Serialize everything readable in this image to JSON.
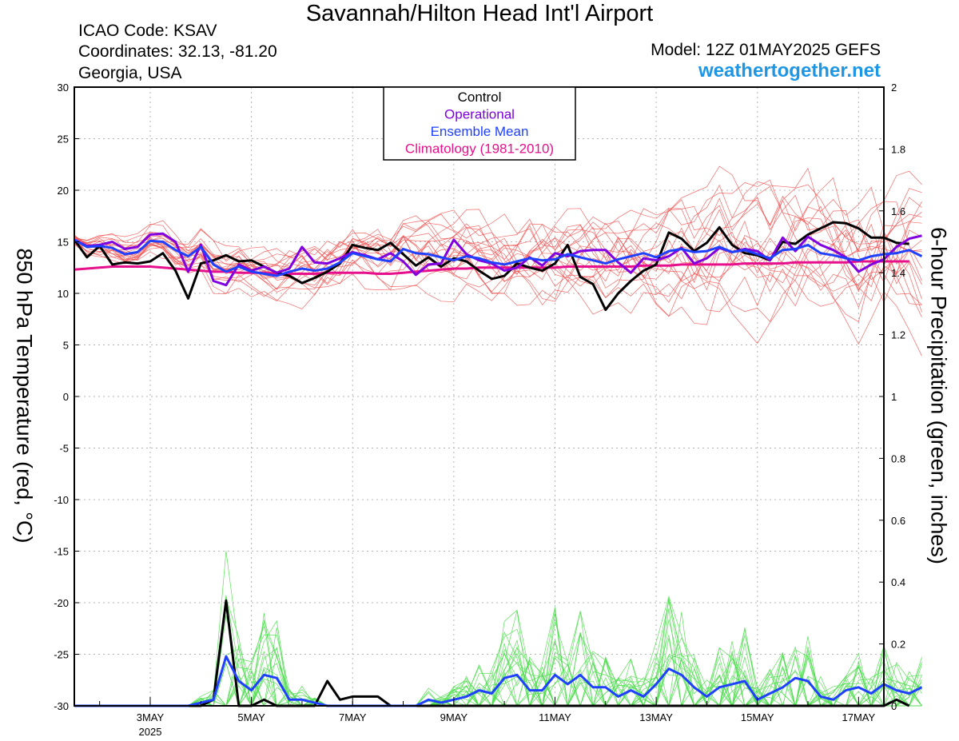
{
  "header": {
    "title": "Savannah/Hilton Head Int'l Airport",
    "icao": "ICAO Code: KSAV",
    "coordinates": "Coordinates: 32.13, -81.20",
    "region": "Georgia, USA",
    "model": "Model: 12Z 01MAY2025 GEFS",
    "site": "weathertogether.net"
  },
  "colors": {
    "members_temp": "#f05050",
    "members_precip": "#4ddd4d",
    "control": "#000000",
    "operational": "#8000e0",
    "ensemble_mean": "#2040ff",
    "climatology": "#e6108c",
    "site_link": "#1e96e6"
  },
  "chart_data": {
    "type": "line",
    "ylabel": "850 hPa Temperature (red, °C)",
    "y2label": "6-hour Precipitation (green, inches)",
    "ylim": [
      -30,
      30
    ],
    "y2lim": [
      0,
      2
    ],
    "yticks": [
      "-30",
      "-25",
      "-20",
      "-15",
      "-10",
      "-5",
      "0",
      "5",
      "10",
      "15",
      "20",
      "25",
      "30"
    ],
    "y2ticks": [
      "0",
      "0.2",
      "0.4",
      "0.6",
      "0.8",
      "1",
      "1.2",
      "1.4",
      "1.6",
      "1.8",
      "2"
    ],
    "xlim": [
      "2025-05-01T12:00Z",
      "2025-05-17T12:00Z"
    ],
    "xtick_labels": [
      "3MAY",
      "5MAY",
      "7MAY",
      "9MAY",
      "11MAY",
      "13MAY",
      "15MAY",
      "17MAY"
    ],
    "x_year_label": "2025",
    "grid": true,
    "legend": {
      "placement": "top-center",
      "entries": [
        "Control",
        "Operational",
        "Ensemble Mean",
        "Climatology (1981-2010)"
      ]
    },
    "time_step_hours": 6,
    "series": [
      {
        "name": "Control",
        "axis": "temperature",
        "values": [
          15.2,
          13.5,
          14.6,
          12.8,
          13.0,
          12.9,
          13.1,
          13.9,
          12.2,
          9.5,
          12.9,
          13.2,
          13.7,
          13.1,
          13.2,
          12.6,
          12.0,
          11.7,
          11.0,
          11.5,
          12.1,
          12.9,
          14.7,
          14.4,
          14.2,
          14.9,
          13.8,
          12.7,
          13.5,
          12.6,
          13.4,
          13.1,
          12.2,
          11.4,
          11.7,
          12.9,
          12.5,
          12.2,
          12.9,
          14.7,
          11.6,
          10.9,
          8.4,
          10.0,
          11.2,
          12.2,
          12.8,
          15.9,
          15.3,
          14.1,
          14.9,
          16.4,
          14.7,
          13.9,
          13.7,
          13.2,
          15.0,
          14.8,
          15.7,
          16.3,
          16.9,
          16.8,
          16.3,
          15.4,
          15.4,
          14.9,
          14.8
        ]
      },
      {
        "name": "Operational",
        "axis": "temperature",
        "values": [
          15.2,
          14.6,
          14.7,
          15.0,
          14.3,
          14.5,
          15.7,
          15.8,
          15.0,
          12.1,
          14.7,
          11.2,
          10.8,
          12.8,
          12.2,
          12.6,
          12.0,
          12.4,
          14.5,
          13.0,
          12.9,
          13.4,
          14.0,
          13.7,
          13.3,
          13.9,
          13.1,
          11.8,
          12.8,
          12.9,
          15.2,
          13.8,
          13.2,
          12.9,
          12.2,
          12.5,
          13.5,
          12.7,
          13.9,
          13.6,
          14.1,
          14.2,
          14.2,
          13.0,
          12.0,
          13.4,
          13.2,
          13.6,
          14.4,
          12.9,
          13.4,
          14.4,
          14.0,
          14.3,
          14.1,
          13.2,
          15.4,
          14.1,
          15.5,
          14.7,
          14.2,
          13.5,
          12.1,
          12.8,
          13.3,
          14.5,
          15.3,
          15.6
        ]
      },
      {
        "name": "Ensemble Mean",
        "axis": "temperature",
        "values": [
          15.2,
          14.5,
          14.6,
          14.4,
          13.8,
          14.0,
          15.1,
          15.0,
          14.2,
          13.6,
          14.5,
          12.8,
          12.1,
          12.6,
          12.1,
          11.9,
          11.7,
          12.1,
          12.4,
          12.2,
          12.4,
          13.0,
          13.9,
          13.6,
          13.3,
          13.1,
          14.3,
          13.9,
          13.8,
          13.5,
          13.2,
          13.6,
          13.4,
          13.0,
          12.8,
          13.1,
          13.4,
          13.2,
          13.3,
          13.8,
          13.5,
          13.2,
          12.9,
          13.3,
          13.6,
          13.9,
          13.5,
          14.1,
          14.3,
          14.0,
          14.1,
          14.5,
          14.0,
          14.2,
          13.8,
          13.4,
          14.2,
          14.3,
          14.7,
          13.9,
          13.7,
          13.4,
          13.2,
          13.6,
          13.8,
          13.9,
          14.2,
          13.6
        ]
      },
      {
        "name": "Climatology (1981-2010)",
        "axis": "temperature",
        "values": [
          12.3,
          12.4,
          12.5,
          12.6,
          12.6,
          12.6,
          12.6,
          12.5,
          12.4,
          12.3,
          12.2,
          12.1,
          12.1,
          12.0,
          12.0,
          12.0,
          11.9,
          11.9,
          11.9,
          11.9,
          12.0,
          12.0,
          12.0,
          12.0,
          11.9,
          11.9,
          12.0,
          12.1,
          12.2,
          12.3,
          12.4,
          12.4,
          12.5,
          12.5,
          12.5,
          12.5,
          12.5,
          12.5,
          12.5,
          12.6,
          12.6,
          12.6,
          12.6,
          12.6,
          12.6,
          12.7,
          12.7,
          12.7,
          12.8,
          12.8,
          12.8,
          12.8,
          12.8,
          12.9,
          12.9,
          12.9,
          12.9,
          13.0,
          13.0,
          13.0,
          13.0,
          13.0,
          13.1,
          13.1,
          13.1,
          13.1,
          13.1
        ]
      },
      {
        "name": "Control",
        "axis": "precipitation",
        "values": [
          0,
          0,
          0,
          0,
          0,
          0,
          0,
          0,
          0,
          0,
          0,
          0.02,
          0.34,
          0,
          0,
          0.02,
          0,
          0,
          0,
          0,
          0.08,
          0.02,
          0.03,
          0.03,
          0.03,
          0,
          0,
          0,
          0,
          0,
          0,
          0,
          0,
          0,
          0,
          0,
          0,
          0,
          0,
          0,
          0,
          0,
          0,
          0,
          0,
          0,
          0,
          0,
          0,
          0,
          0,
          0,
          0,
          0,
          0,
          0,
          0,
          0,
          0,
          0,
          0,
          0,
          0,
          0,
          0,
          0.02,
          0
        ]
      },
      {
        "name": "Ensemble Mean",
        "axis": "precipitation",
        "values": [
          0,
          0,
          0,
          0,
          0,
          0,
          0,
          0,
          0,
          0,
          0.01,
          0.02,
          0.16,
          0.08,
          0.05,
          0.1,
          0.09,
          0.02,
          0.02,
          0.01,
          0,
          0,
          0,
          0,
          0,
          0,
          0,
          0,
          0.02,
          0.01,
          0.02,
          0.03,
          0.05,
          0.04,
          0.09,
          0.1,
          0.05,
          0.05,
          0.1,
          0.07,
          0.1,
          0.06,
          0.06,
          0.03,
          0.05,
          0.03,
          0.07,
          0.12,
          0.1,
          0.06,
          0.03,
          0.06,
          0.07,
          0.08,
          0.02,
          0.04,
          0.06,
          0.09,
          0.08,
          0.03,
          0.02,
          0.05,
          0.06,
          0.04,
          0.07,
          0.05,
          0.04,
          0.06
        ]
      }
    ]
  }
}
